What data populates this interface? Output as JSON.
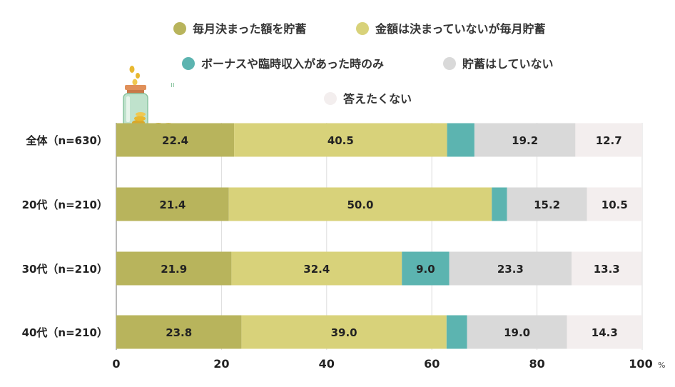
{
  "chart_data": {
    "type": "bar",
    "orientation": "horizontal",
    "stacked": true,
    "categories": [
      "全体（n=630）",
      "20代（n=210）",
      "30代（n=210）",
      "40代（n=210）"
    ],
    "series": [
      {
        "name": "毎月決まった額を貯蓄",
        "color": "#b8b45c",
        "values": [
          22.4,
          21.4,
          21.9,
          23.8
        ]
      },
      {
        "name": "金額は決まっていないが毎月貯蓄",
        "color": "#d8d27a",
        "values": [
          40.5,
          50.0,
          32.4,
          39.0
        ]
      },
      {
        "name": "ボーナスや臨時収入があった時のみ",
        "color": "#5cb4b0",
        "values": [
          5.2,
          2.9,
          9.0,
          3.9
        ]
      },
      {
        "name": "貯蓄はしていない",
        "color": "#d9d9d9",
        "values": [
          19.2,
          15.2,
          23.3,
          19.0
        ]
      },
      {
        "name": "答えたくない",
        "color": "#f3eeee",
        "values": [
          12.7,
          10.5,
          13.3,
          14.3
        ]
      }
    ],
    "data_labels": [
      [
        "22.4",
        "40.5",
        "",
        "19.2",
        "12.7"
      ],
      [
        "21.4",
        "50.0",
        "",
        "15.2",
        "10.5"
      ],
      [
        "21.9",
        "32.4",
        "9.0",
        "23.3",
        "13.3"
      ],
      [
        "23.8",
        "39.0",
        "",
        "19.0",
        "14.3"
      ]
    ],
    "x_ticks": [
      "0",
      "20",
      "40",
      "60",
      "80",
      "100"
    ],
    "x_unit": "%",
    "xlim": [
      0,
      100
    ],
    "grid": true,
    "legend_position": "top"
  }
}
